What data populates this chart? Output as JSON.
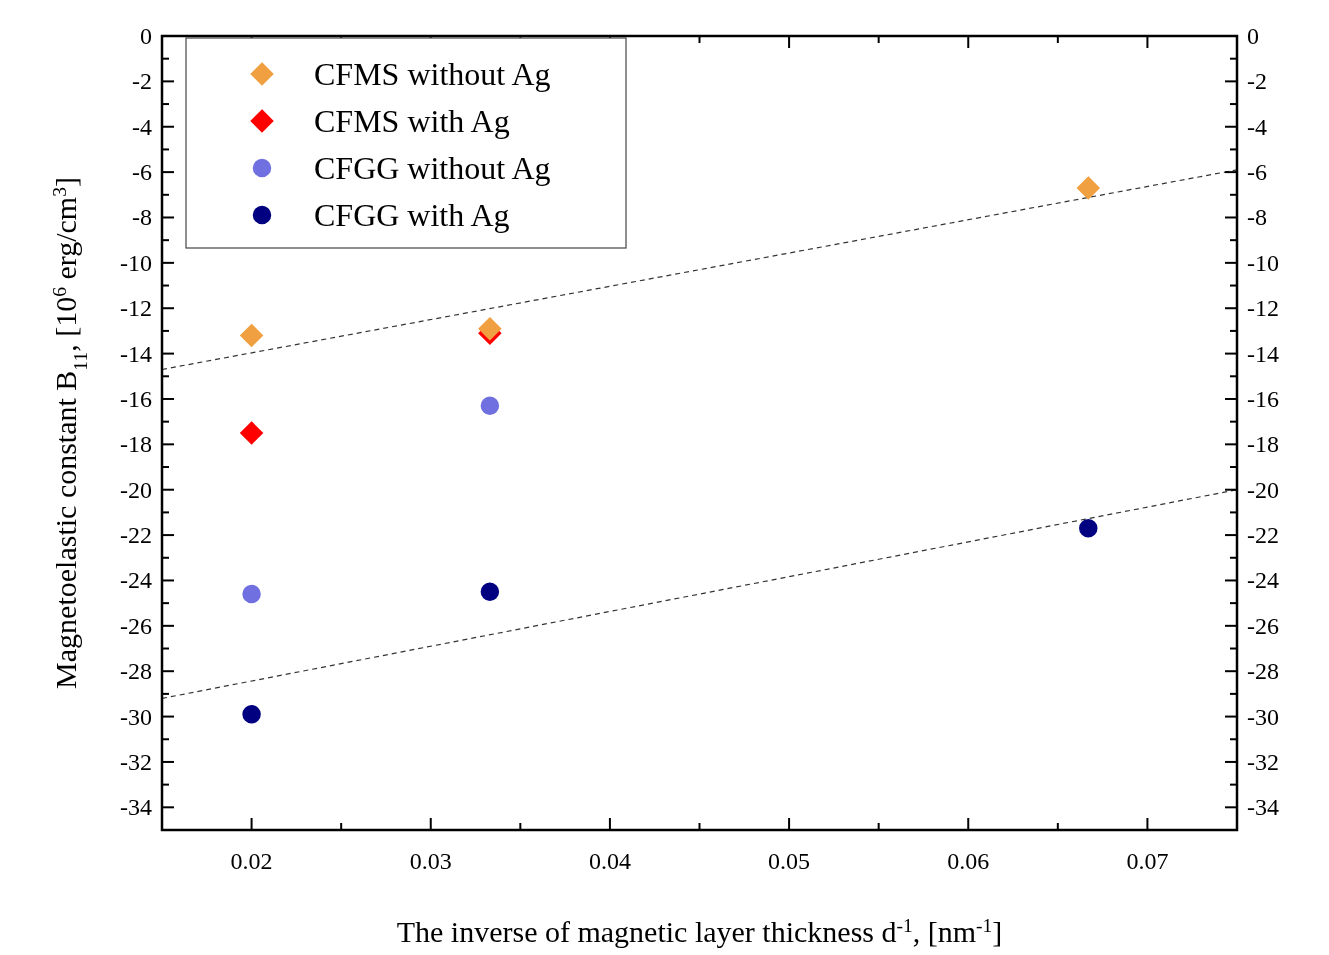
{
  "chart_data": {
    "type": "scatter",
    "xlabel": "The inverse of magnetic layer thickness d$^{-1}$, [nm$^{-1}$]",
    "ylabel": "Magnetoelastic constant B$_{11}$, [10$^{6}$ erg/cm$^{3}$]",
    "xlim": [
      0.015,
      0.075
    ],
    "xticks": [
      {
        "value": 0.015,
        "label": null
      },
      0.02,
      {
        "value": 0.025,
        "label": null
      },
      0.03,
      {
        "value": 0.035,
        "label": null
      },
      0.04,
      {
        "value": 0.045,
        "label": null
      },
      0.05,
      {
        "value": 0.055,
        "label": null
      },
      0.06,
      {
        "value": 0.065,
        "label": null
      },
      0.07,
      {
        "value": 0.075,
        "label": null
      }
    ],
    "ylim": [
      -35,
      0
    ],
    "yticks": [
      0,
      {
        "value": -1,
        "label": null
      },
      -2,
      {
        "value": -3,
        "label": null
      },
      -4,
      {
        "value": -5,
        "label": null
      },
      -6,
      {
        "value": -7,
        "label": null
      },
      -8,
      {
        "value": -9,
        "label": null
      },
      -10,
      {
        "value": -11,
        "label": null
      },
      -12,
      {
        "value": -13,
        "label": null
      },
      -14,
      {
        "value": -15,
        "label": null
      },
      -16,
      {
        "value": -17,
        "label": null
      },
      -18,
      {
        "value": -19,
        "label": null
      },
      -20,
      {
        "value": -21,
        "label": null
      },
      -22,
      {
        "value": -23,
        "label": null
      },
      -24,
      {
        "value": -25,
        "label": null
      },
      -26,
      {
        "value": -27,
        "label": null
      },
      -28,
      {
        "value": -29,
        "label": null
      },
      -30,
      {
        "value": -31,
        "label": null
      },
      -32,
      {
        "value": -33,
        "label": null
      },
      -34
    ],
    "y2lim": [
      -35,
      0
    ],
    "y2ticks": [
      0,
      {
        "value": -1,
        "label": null
      },
      -2,
      {
        "value": -3,
        "label": null
      },
      -4,
      {
        "value": -5,
        "label": null
      },
      -6,
      {
        "value": -7,
        "label": null
      },
      -8,
      {
        "value": -9,
        "label": null
      },
      -10,
      {
        "value": -11,
        "label": null
      },
      -12,
      {
        "value": -13,
        "label": null
      },
      -14,
      {
        "value": -15,
        "label": null
      },
      -16,
      {
        "value": -17,
        "label": null
      },
      -18,
      {
        "value": -19,
        "label": null
      },
      -20,
      {
        "value": -21,
        "label": null
      },
      -22,
      {
        "value": -23,
        "label": null
      },
      -24,
      {
        "value": -25,
        "label": null
      },
      -26,
      {
        "value": -27,
        "label": null
      },
      -28,
      {
        "value": -29,
        "label": null
      },
      -30,
      {
        "value": -31,
        "label": null
      },
      -32,
      {
        "value": -33,
        "label": null
      },
      -34
    ],
    "legend": "top left",
    "series": [
      {
        "name": "CFMS without Ag",
        "color": "#f0a040",
        "marker": "diamond",
        "x": [
          0.02,
          0.0333,
          0.0667
        ],
        "values": [
          -13.2,
          -12.9,
          -6.7
        ]
      },
      {
        "name": "CFMS with Ag",
        "color": "#ff0000",
        "marker": "diamond",
        "x": [
          0.02,
          0.0333
        ],
        "values": [
          -17.5,
          -13.1
        ]
      },
      {
        "name": "CFGG without Ag",
        "color": "#7070e0",
        "marker": "circle",
        "x": [
          0.02,
          0.0333
        ],
        "values": [
          -24.6,
          -16.3
        ]
      },
      {
        "name": "CFGG with Ag",
        "color": "#000080",
        "marker": "circle",
        "x": [
          0.02,
          0.0333,
          0.0667
        ],
        "values": [
          -29.9,
          -24.5,
          -21.7
        ]
      },
      {
        "type": "line",
        "color": "#333333",
        "marker": "none",
        "line_style": "dashed",
        "x": [
          0.015,
          0.075
        ],
        "values": [
          -14.7,
          -5.9
        ]
      },
      {
        "type": "line",
        "color": "#333333",
        "marker": "none",
        "line_style": "dashed",
        "x": [
          0.015,
          0.075
        ],
        "values": [
          -29.2,
          -20.0
        ]
      }
    ]
  }
}
